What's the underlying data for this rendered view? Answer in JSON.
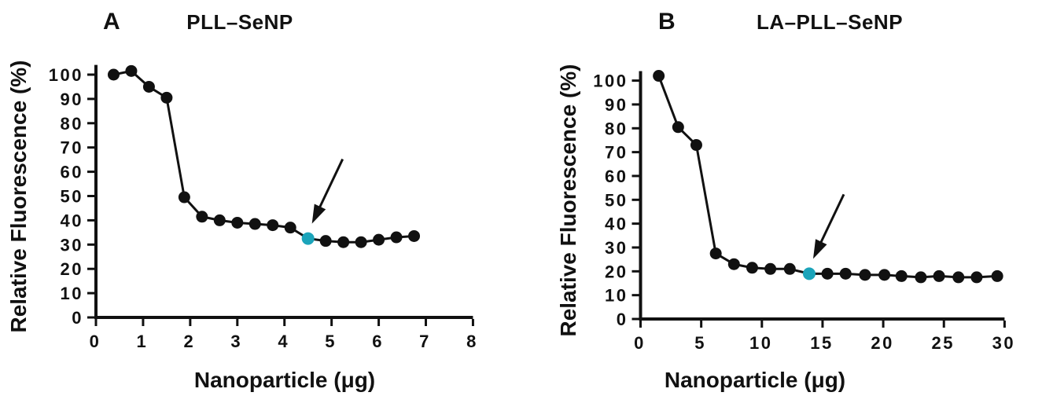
{
  "colors": {
    "axis": "#111111",
    "line": "#111111",
    "point": "#111111",
    "highlight": "#1BA4BA",
    "text": "#111111"
  },
  "chart_data": [
    {
      "type": "line",
      "panel_label": "A",
      "title": "PLL–SeNP",
      "xlabel": "Nanoparticle (μg)",
      "ylabel": "Relative Fluorescence (%)",
      "xlim": [
        0,
        8
      ],
      "ylim": [
        0,
        100
      ],
      "x_ticks": [
        0,
        1,
        2,
        3,
        4,
        5,
        6,
        7,
        8
      ],
      "y_ticks": [
        0,
        10,
        20,
        30,
        40,
        50,
        60,
        70,
        80,
        90,
        100
      ],
      "grid": false,
      "legend": "none",
      "x": [
        0.375,
        0.75,
        1.125,
        1.5,
        1.875,
        2.25,
        2.625,
        3.0,
        3.375,
        3.75,
        4.125,
        4.5,
        4.875,
        5.25,
        5.625,
        6.0,
        6.375,
        6.75
      ],
      "y": [
        100,
        101.5,
        95,
        90.5,
        49.5,
        41.5,
        40,
        39,
        38.5,
        38,
        37,
        32.5,
        31.5,
        31,
        31,
        32,
        33,
        33.5
      ],
      "highlight_index": 11,
      "annotation": "arrow-to-highlighted-point"
    },
    {
      "type": "line",
      "panel_label": "B",
      "title": "LA–PLL–SeNP",
      "xlabel": "Nanoparticle (μg)",
      "ylabel": "Relative Fluorescence (%)",
      "xlim": [
        0,
        30
      ],
      "ylim": [
        0,
        100
      ],
      "x_ticks": [
        0,
        5,
        10,
        15,
        20,
        25,
        30
      ],
      "y_ticks": [
        0,
        10,
        20,
        30,
        40,
        50,
        60,
        70,
        80,
        90,
        100
      ],
      "grid": false,
      "legend": "none",
      "x": [
        1.5,
        3.1,
        4.6,
        6.2,
        7.7,
        9.2,
        10.7,
        12.3,
        13.9,
        15.4,
        16.9,
        18.5,
        20.1,
        21.5,
        23.1,
        24.6,
        26.2,
        27.7,
        29.4
      ],
      "y": [
        102,
        80.5,
        73,
        27.5,
        23,
        21.5,
        21,
        21,
        19,
        19,
        19,
        18.5,
        18.5,
        18,
        17.5,
        18,
        17.5,
        17.5,
        18
      ],
      "highlight_index": 8,
      "annotation": "arrow-to-highlighted-point"
    }
  ]
}
